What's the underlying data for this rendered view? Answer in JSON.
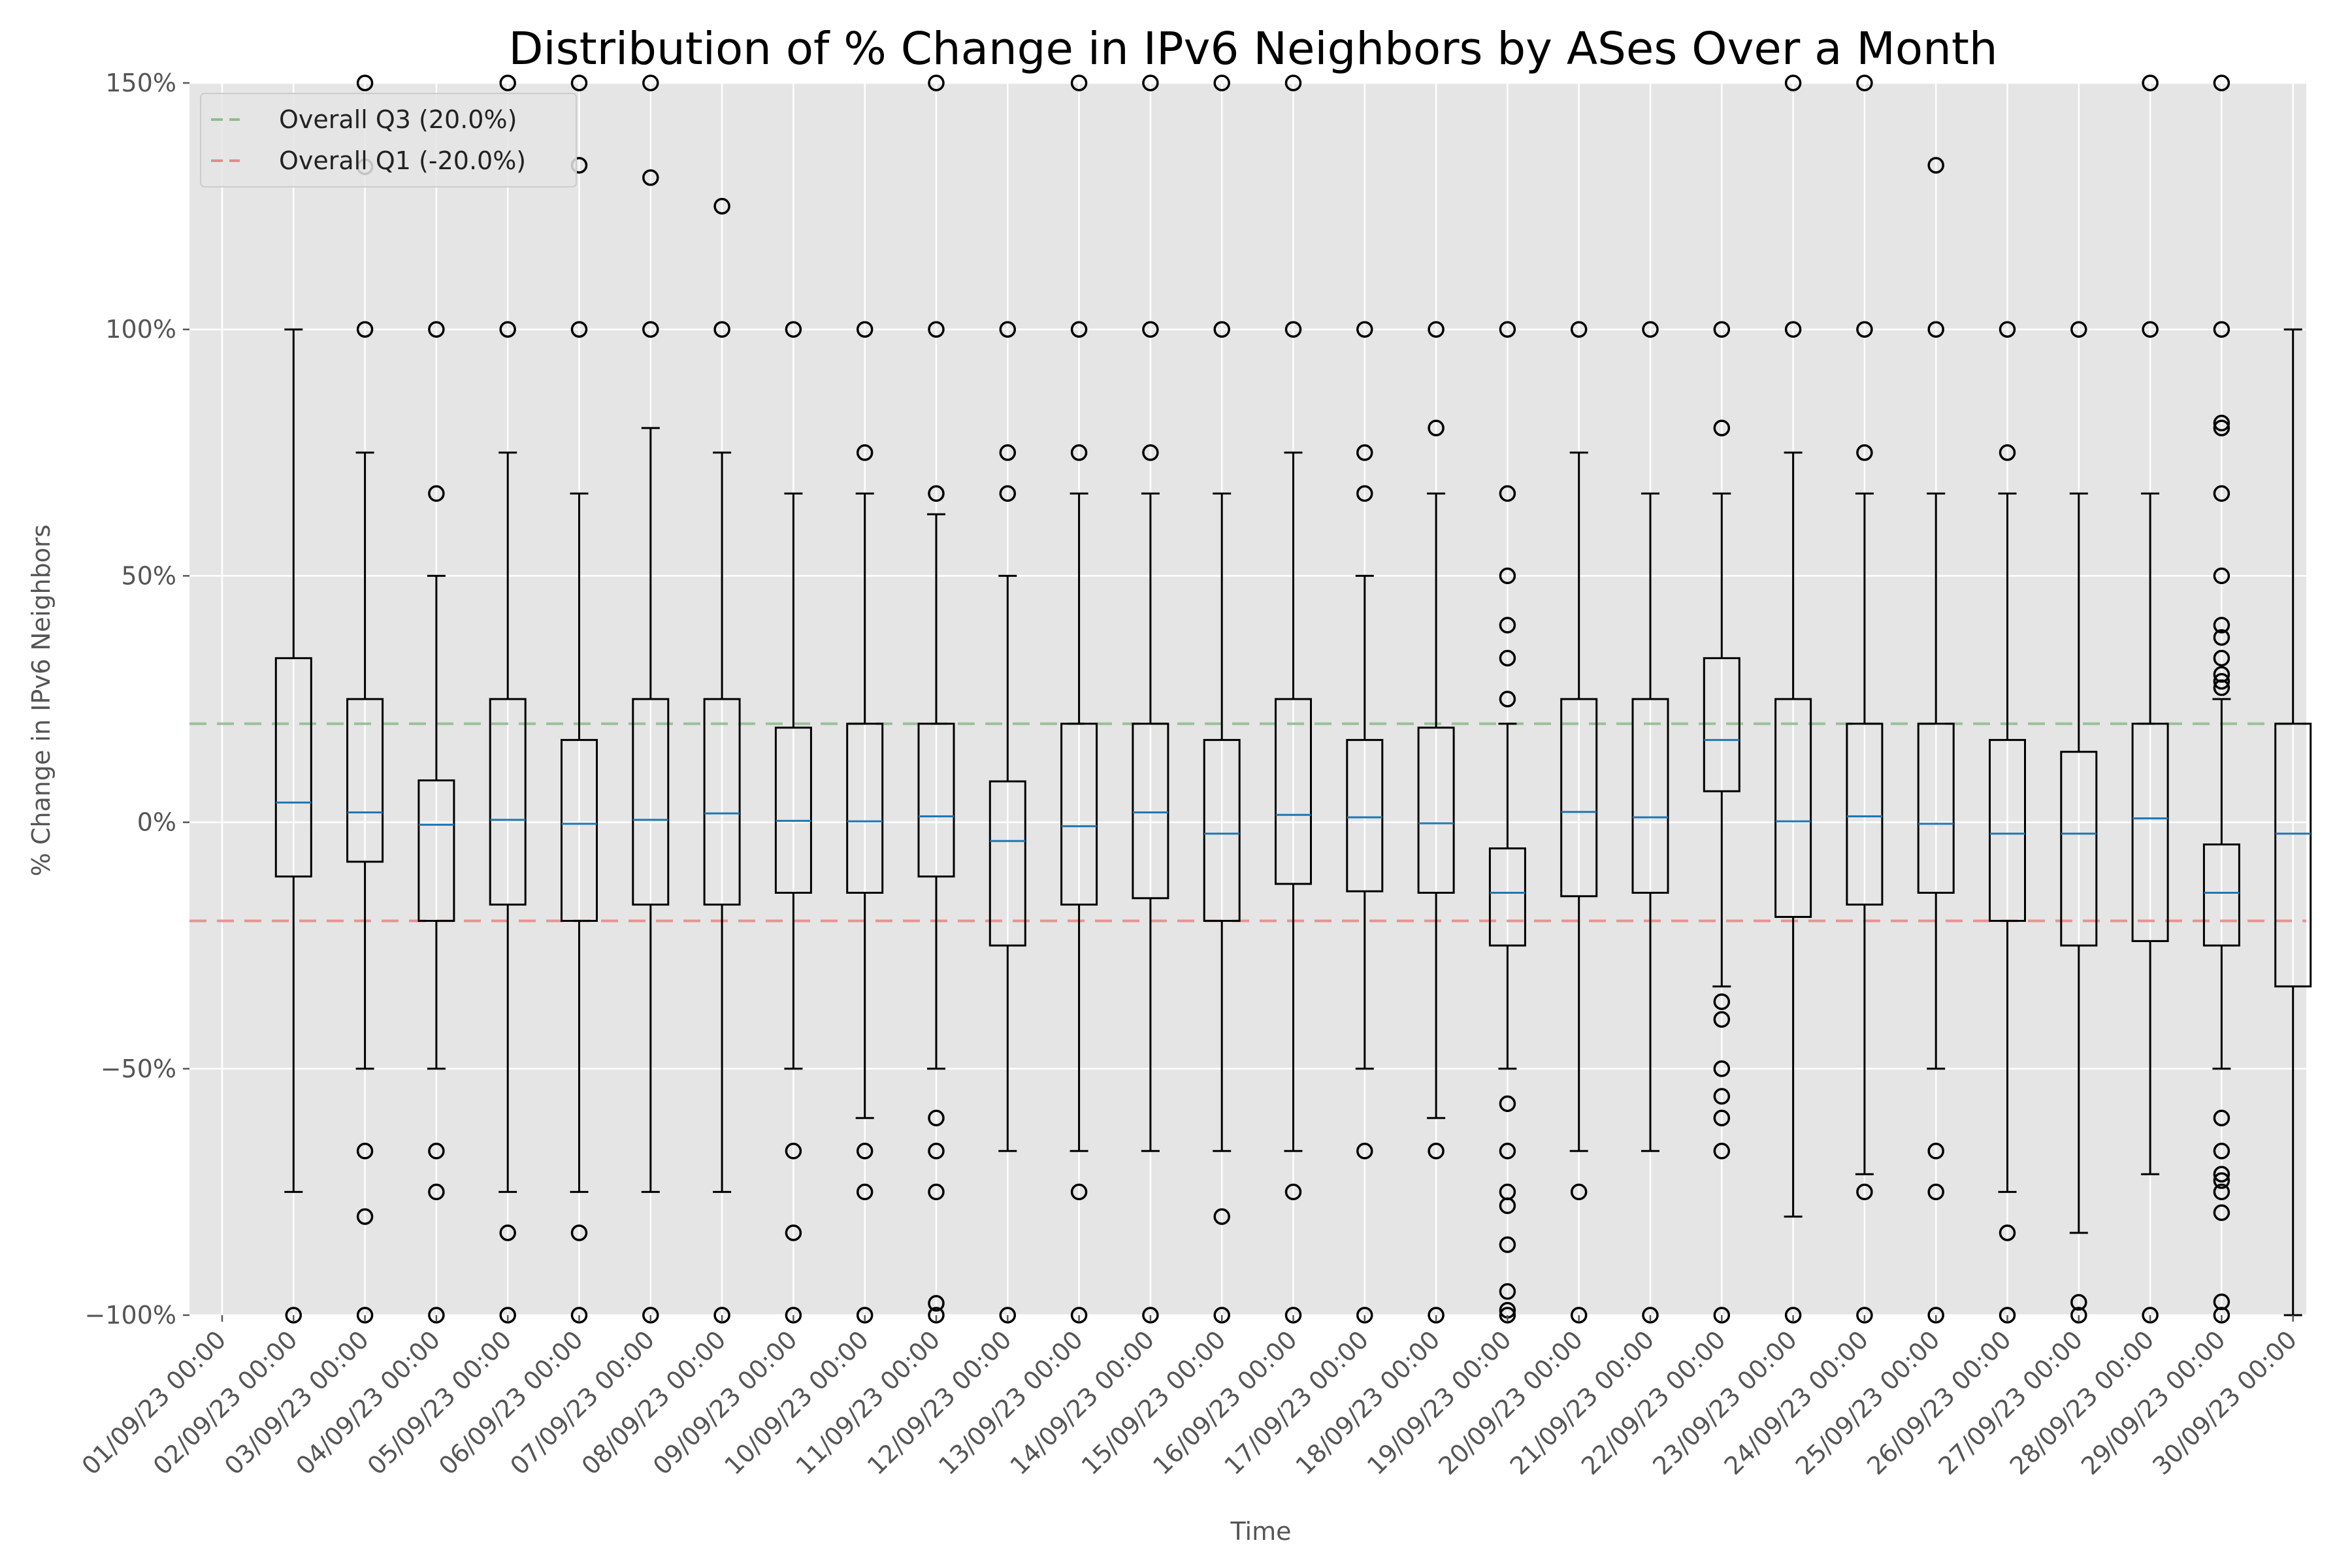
{
  "chart_data": {
    "type": "box",
    "title": "Distribution of % Change in IPv6 Neighbors by ASes Over a Month",
    "xlabel": "Time",
    "ylabel": "% Change in IPv6 Neighbors",
    "ylim": [
      -100,
      150
    ],
    "yticks": [
      -100,
      -50,
      0,
      50,
      100,
      150
    ],
    "ytick_labels": [
      "−100%",
      "−50%",
      "0%",
      "50%",
      "100%",
      "150%"
    ],
    "grid": true,
    "legend_position": "top-left",
    "reference_lines": [
      {
        "label": "Overall Q3 (20.0%)",
        "value": 20,
        "color": "#8fbc8f"
      },
      {
        "label": "Overall Q1 (-20.0%)",
        "value": -20,
        "color": "#e68a8a"
      }
    ],
    "colors": {
      "background": "#e5e5e5",
      "grid": "#ffffff",
      "median": "#1f77b4",
      "box": "#000000"
    },
    "categories": [
      "01/09/23 00:00",
      "02/09/23 00:00",
      "03/09/23 00:00",
      "04/09/23 00:00",
      "05/09/23 00:00",
      "06/09/23 00:00",
      "07/09/23 00:00",
      "08/09/23 00:00",
      "09/09/23 00:00",
      "10/09/23 00:00",
      "11/09/23 00:00",
      "12/09/23 00:00",
      "13/09/23 00:00",
      "14/09/23 00:00",
      "15/09/23 00:00",
      "16/09/23 00:00",
      "17/09/23 00:00",
      "18/09/23 00:00",
      "19/09/23 00:00",
      "20/09/23 00:00",
      "21/09/23 00:00",
      "22/09/23 00:00",
      "23/09/23 00:00",
      "24/09/23 00:00",
      "25/09/23 00:00",
      "26/09/23 00:00",
      "27/09/23 00:00",
      "28/09/23 00:00",
      "29/09/23 00:00",
      "30/09/23 00:00"
    ],
    "boxes": [
      {
        "label": "02/09/23 00:00",
        "q1": -11,
        "median": 4,
        "q3": 33.3,
        "whisker_low": -75,
        "whisker_high": 100,
        "outliers": [
          -100
        ]
      },
      {
        "label": "03/09/23 00:00",
        "q1": -8,
        "median": 2,
        "q3": 25,
        "whisker_low": -50,
        "whisker_high": 75,
        "outliers": [
          -100,
          -80,
          -66.7,
          100,
          133,
          150
        ]
      },
      {
        "label": "04/09/23 00:00",
        "q1": -20,
        "median": -0.5,
        "q3": 8.5,
        "whisker_low": -50,
        "whisker_high": 50,
        "outliers": [
          -100,
          -75,
          -66.7,
          66.7,
          100
        ]
      },
      {
        "label": "05/09/23 00:00",
        "q1": -16.7,
        "median": 0.5,
        "q3": 25,
        "whisker_low": -75,
        "whisker_high": 75,
        "outliers": [
          -100,
          -83.3,
          100,
          150
        ]
      },
      {
        "label": "06/09/23 00:00",
        "q1": -20,
        "median": -0.3,
        "q3": 16.7,
        "whisker_low": -75,
        "whisker_high": 66.7,
        "outliers": [
          -100,
          -83.3,
          100,
          133.3,
          150
        ]
      },
      {
        "label": "07/09/23 00:00",
        "q1": -16.7,
        "median": 0.5,
        "q3": 25,
        "whisker_low": -75,
        "whisker_high": 80,
        "outliers": [
          -100,
          100,
          130.8,
          150
        ]
      },
      {
        "label": "08/09/23 00:00",
        "q1": -16.7,
        "median": 1.8,
        "q3": 25,
        "whisker_low": -75,
        "whisker_high": 75,
        "outliers": [
          -100,
          100,
          125
        ]
      },
      {
        "label": "09/09/23 00:00",
        "q1": -14.3,
        "median": 0.3,
        "q3": 19.2,
        "whisker_low": -50,
        "whisker_high": 66.7,
        "outliers": [
          -100,
          -83.3,
          -66.7,
          100
        ]
      },
      {
        "label": "10/09/23 00:00",
        "q1": -14.3,
        "median": 0.2,
        "q3": 20,
        "whisker_low": -60,
        "whisker_high": 66.7,
        "outliers": [
          -100,
          -75,
          -66.7,
          75,
          100
        ]
      },
      {
        "label": "11/09/23 00:00",
        "q1": -11,
        "median": 1.2,
        "q3": 20,
        "whisker_low": -50,
        "whisker_high": 62.5,
        "outliers": [
          -100,
          -97.6,
          -75,
          -66.7,
          -60,
          66.7,
          100,
          150
        ]
      },
      {
        "label": "12/09/23 00:00",
        "q1": -25,
        "median": -3.8,
        "q3": 8.3,
        "whisker_low": -66.7,
        "whisker_high": 50,
        "outliers": [
          -100,
          66.7,
          75,
          100
        ]
      },
      {
        "label": "13/09/23 00:00",
        "q1": -16.7,
        "median": -0.8,
        "q3": 20,
        "whisker_low": -66.7,
        "whisker_high": 66.7,
        "outliers": [
          -100,
          -75,
          75,
          100,
          150
        ]
      },
      {
        "label": "14/09/23 00:00",
        "q1": -15.4,
        "median": 2,
        "q3": 20,
        "whisker_low": -66.7,
        "whisker_high": 66.7,
        "outliers": [
          -100,
          75,
          100,
          150
        ]
      },
      {
        "label": "15/09/23 00:00",
        "q1": -20,
        "median": -2.3,
        "q3": 16.7,
        "whisker_low": -66.7,
        "whisker_high": 66.7,
        "outliers": [
          -100,
          -80,
          100,
          150
        ]
      },
      {
        "label": "16/09/23 00:00",
        "q1": -12.5,
        "median": 1.5,
        "q3": 25,
        "whisker_low": -66.7,
        "whisker_high": 75,
        "outliers": [
          -100,
          -75,
          100,
          150
        ]
      },
      {
        "label": "17/09/23 00:00",
        "q1": -14,
        "median": 1,
        "q3": 16.7,
        "whisker_low": -50,
        "whisker_high": 50,
        "outliers": [
          -100,
          -66.7,
          66.7,
          75,
          100
        ]
      },
      {
        "label": "18/09/23 00:00",
        "q1": -14.3,
        "median": -0.2,
        "q3": 19.2,
        "whisker_low": -60,
        "whisker_high": 66.7,
        "outliers": [
          -100,
          -66.7,
          80,
          100
        ]
      },
      {
        "label": "19/09/23 00:00",
        "q1": -25,
        "median": -14.3,
        "q3": -5.3,
        "whisker_low": -50,
        "whisker_high": 20,
        "outliers": [
          -100,
          -99,
          -95.2,
          -85.7,
          -77.8,
          -75,
          -66.7,
          -57.1,
          25,
          33.3,
          40,
          50,
          66.7,
          100
        ]
      },
      {
        "label": "20/09/23 00:00",
        "q1": -15,
        "median": 2.1,
        "q3": 25,
        "whisker_low": -66.7,
        "whisker_high": 75,
        "outliers": [
          -100,
          -75,
          100
        ]
      },
      {
        "label": "21/09/23 00:00",
        "q1": -14.3,
        "median": 1,
        "q3": 25,
        "whisker_low": -66.7,
        "whisker_high": 66.7,
        "outliers": [
          -100,
          100
        ]
      },
      {
        "label": "22/09/23 00:00",
        "q1": 6.3,
        "median": 16.7,
        "q3": 33.3,
        "whisker_low": -33.3,
        "whisker_high": 66.7,
        "outliers": [
          -100,
          -66.7,
          -60,
          -55.6,
          -50,
          -40,
          -36.4,
          80,
          100
        ]
      },
      {
        "label": "23/09/23 00:00",
        "q1": -19.2,
        "median": 0.2,
        "q3": 25,
        "whisker_low": -80,
        "whisker_high": 75,
        "outliers": [
          -100,
          100,
          150
        ]
      },
      {
        "label": "24/09/23 00:00",
        "q1": -16.7,
        "median": 1.2,
        "q3": 20,
        "whisker_low": -71.4,
        "whisker_high": 66.7,
        "outliers": [
          -100,
          -75,
          75,
          100,
          150
        ]
      },
      {
        "label": "25/09/23 00:00",
        "q1": -14.3,
        "median": -0.3,
        "q3": 20,
        "whisker_low": -50,
        "whisker_high": 66.7,
        "outliers": [
          -100,
          -75,
          -66.7,
          100,
          133.3
        ]
      },
      {
        "label": "26/09/23 00:00",
        "q1": -20,
        "median": -2.3,
        "q3": 16.7,
        "whisker_low": -75,
        "whisker_high": 66.7,
        "outliers": [
          -100,
          -83.3,
          75,
          100
        ]
      },
      {
        "label": "27/09/23 00:00",
        "q1": -25,
        "median": -2.3,
        "q3": 14.3,
        "whisker_low": -83.3,
        "whisker_high": 66.7,
        "outliers": [
          -100,
          -97.4,
          100
        ]
      },
      {
        "label": "28/09/23 00:00",
        "q1": -24.1,
        "median": 0.8,
        "q3": 20,
        "whisker_low": -71.4,
        "whisker_high": 66.7,
        "outliers": [
          -100,
          100,
          150
        ]
      },
      {
        "label": "29/09/23 00:00",
        "q1": -25,
        "median": -14.3,
        "q3": -4.5,
        "whisker_low": -50,
        "whisker_high": 25,
        "outliers": [
          -100,
          -97.3,
          -79.2,
          -75,
          -72.7,
          -71.4,
          -66.7,
          -60,
          27.3,
          28.6,
          30,
          33.3,
          37.5,
          40,
          50,
          66.7,
          80,
          81,
          100,
          150
        ]
      },
      {
        "label": "30/09/23 00:00",
        "q1": -33.3,
        "median": -2.3,
        "q3": 20,
        "whisker_low": -100,
        "whisker_high": 100,
        "outliers": []
      }
    ]
  }
}
